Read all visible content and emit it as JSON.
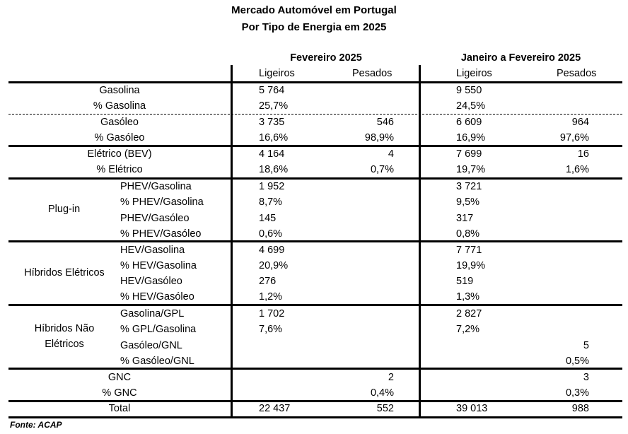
{
  "title": {
    "line1": "Mercado Automóvel em Portugal",
    "line2": "Por Tipo de Energia em 2025"
  },
  "headers": {
    "period1": "Fevereiro 2025",
    "period2": "Janeiro a Fevereiro 2025",
    "ligeiros": "Ligeiros",
    "pesados": "Pesados"
  },
  "groups": {
    "plugin": "Plug-in",
    "hibridos_eletricos": "Híbridos Elétricos",
    "hibridos_nao_line1": "Híbridos Não",
    "hibridos_nao_line2": "Elétricos"
  },
  "rows": [
    {
      "label": "Gasolina",
      "c1": "5 764",
      "c2": "",
      "c3": "9 550",
      "c4": ""
    },
    {
      "label": "% Gasolina",
      "c1": "25,7%",
      "c2": "",
      "c3": "24,5%",
      "c4": ""
    },
    {
      "label": "Gasóleo",
      "c1": "3 735",
      "c2": "546",
      "c3": "6 609",
      "c4": "964"
    },
    {
      "label": "% Gasóleo",
      "c1": "16,6%",
      "c2": "98,9%",
      "c3": "16,9%",
      "c4": "97,6%"
    },
    {
      "label": "Elétrico (BEV)",
      "c1": "4 164",
      "c2": "4",
      "c3": "7 699",
      "c4": "16"
    },
    {
      "label": "% Elétrico",
      "c1": "18,6%",
      "c2": "0,7%",
      "c3": "19,7%",
      "c4": "1,6%"
    },
    {
      "label": "PHEV/Gasolina",
      "c1": "1 952",
      "c2": "",
      "c3": "3 721",
      "c4": ""
    },
    {
      "label": "% PHEV/Gasolina",
      "c1": "8,7%",
      "c2": "",
      "c3": "9,5%",
      "c4": ""
    },
    {
      "label": "PHEV/Gasóleo",
      "c1": "145",
      "c2": "",
      "c3": "317",
      "c4": ""
    },
    {
      "label": "% PHEV/Gasóleo",
      "c1": "0,6%",
      "c2": "",
      "c3": "0,8%",
      "c4": ""
    },
    {
      "label": "HEV/Gasolina",
      "c1": "4 699",
      "c2": "",
      "c3": "7 771",
      "c4": ""
    },
    {
      "label": "% HEV/Gasolina",
      "c1": "20,9%",
      "c2": "",
      "c3": "19,9%",
      "c4": ""
    },
    {
      "label": "HEV/Gasóleo",
      "c1": "276",
      "c2": "",
      "c3": "519",
      "c4": ""
    },
    {
      "label": "% HEV/Gasóleo",
      "c1": "1,2%",
      "c2": "",
      "c3": "1,3%",
      "c4": ""
    },
    {
      "label": "Gasolina/GPL",
      "c1": "1 702",
      "c2": "",
      "c3": "2 827",
      "c4": ""
    },
    {
      "label": "% GPL/Gasolina",
      "c1": "7,6%",
      "c2": "",
      "c3": "7,2%",
      "c4": ""
    },
    {
      "label": "Gasóleo/GNL",
      "c1": "",
      "c2": "",
      "c3": "",
      "c4": "5"
    },
    {
      "label": "% Gasóleo/GNL",
      "c1": "",
      "c2": "",
      "c3": "",
      "c4": "0,5%"
    },
    {
      "label": "GNC",
      "c1": "",
      "c2": "2",
      "c3": "",
      "c4": "3"
    },
    {
      "label": "% GNC",
      "c1": "",
      "c2": "0,4%",
      "c3": "",
      "c4": "0,3%"
    },
    {
      "label": "Total",
      "c1": "22 437",
      "c2": "552",
      "c3": "39 013",
      "c4": "988"
    }
  ],
  "source": "Fonte: ACAP"
}
